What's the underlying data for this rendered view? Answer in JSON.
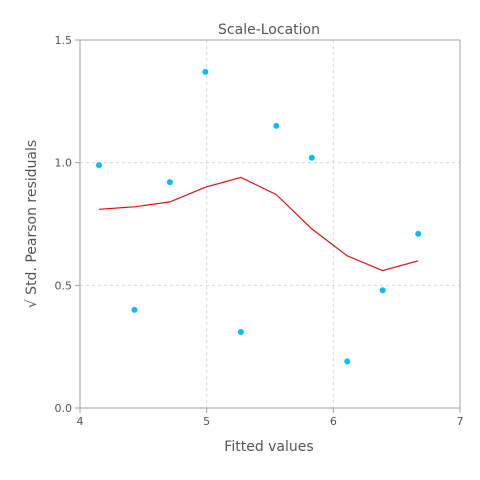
{
  "chart_data": {
    "type": "scatter",
    "title": "Scale-Location",
    "xlabel": "Fitted values",
    "ylabel": "√ Std. Pearson residuals",
    "xlim": [
      4,
      7
    ],
    "ylim": [
      0.0,
      1.5
    ],
    "xticks": [
      "4",
      "5",
      "6",
      "7"
    ],
    "xtick_values": [
      4,
      5,
      6,
      7
    ],
    "yticks": [
      "0.0",
      "0.5",
      "1.0",
      "1.5"
    ],
    "ytick_values": [
      0.0,
      0.5,
      1.0,
      1.5
    ],
    "grid": true,
    "colors": {
      "points": "#00bfff",
      "smooth": "#e01010",
      "frame": "#a0a0a0",
      "grid": "#d9d9d9"
    },
    "series": [
      {
        "kind": "points",
        "x": [
          4.15,
          4.43,
          4.71,
          4.99,
          5.27,
          5.55,
          5.83,
          6.11,
          6.39,
          6.67
        ],
        "y": [
          0.99,
          0.4,
          0.92,
          1.37,
          0.31,
          1.15,
          1.02,
          0.19,
          0.48,
          0.71
        ]
      },
      {
        "kind": "smooth-line",
        "x": [
          4.15,
          4.43,
          4.71,
          4.99,
          5.27,
          5.55,
          5.83,
          6.11,
          6.39,
          6.67
        ],
        "y": [
          0.81,
          0.82,
          0.84,
          0.9,
          0.94,
          0.87,
          0.73,
          0.62,
          0.56,
          0.6
        ]
      }
    ]
  }
}
